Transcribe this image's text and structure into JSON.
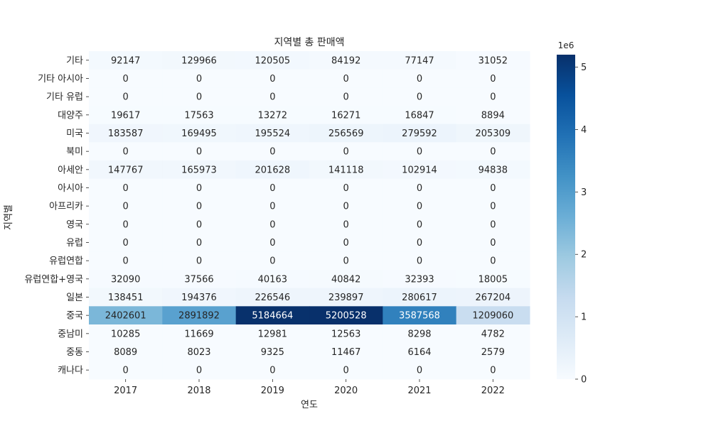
{
  "chart_data": {
    "type": "heatmap",
    "title": "지역별 총 판매액",
    "xlabel": "연도",
    "ylabel": "지역별",
    "x": [
      "2017",
      "2018",
      "2019",
      "2020",
      "2021",
      "2022"
    ],
    "y": [
      "기타",
      "기타 아시아",
      "기타 유럽",
      "대양주",
      "미국",
      "북미",
      "아세안",
      "아시아",
      "아프리카",
      "영국",
      "유럽",
      "유럽연합",
      "유럽연합+영국",
      "일본",
      "중국",
      "중남미",
      "중동",
      "캐나다"
    ],
    "values": [
      [
        92147,
        129966,
        120505,
        84192,
        77147,
        31052
      ],
      [
        0,
        0,
        0,
        0,
        0,
        0
      ],
      [
        0,
        0,
        0,
        0,
        0,
        0
      ],
      [
        19617,
        17563,
        13272,
        16271,
        16847,
        8894
      ],
      [
        183587,
        169495,
        195524,
        256569,
        279592,
        205309
      ],
      [
        0,
        0,
        0,
        0,
        0,
        0
      ],
      [
        147767,
        165973,
        201628,
        141118,
        102914,
        94838
      ],
      [
        0,
        0,
        0,
        0,
        0,
        0
      ],
      [
        0,
        0,
        0,
        0,
        0,
        0
      ],
      [
        0,
        0,
        0,
        0,
        0,
        0
      ],
      [
        0,
        0,
        0,
        0,
        0,
        0
      ],
      [
        0,
        0,
        0,
        0,
        0,
        0
      ],
      [
        32090,
        37566,
        40163,
        40842,
        32393,
        18005
      ],
      [
        138451,
        194376,
        226546,
        239897,
        280617,
        267204
      ],
      [
        2402601,
        2891892,
        5184664,
        5200528,
        3587568,
        1209060
      ],
      [
        10285,
        11669,
        12981,
        12563,
        8298,
        4782
      ],
      [
        8089,
        8023,
        9325,
        11467,
        6164,
        2579
      ],
      [
        0,
        0,
        0,
        0,
        0,
        0
      ]
    ],
    "colormap": "Blues",
    "colorbar": {
      "ticks": [
        "0",
        "1",
        "2",
        "3",
        "4",
        "5"
      ],
      "scale_label": "1e6",
      "range": [
        0,
        5200528
      ]
    },
    "grid": false,
    "legend": "none"
  }
}
